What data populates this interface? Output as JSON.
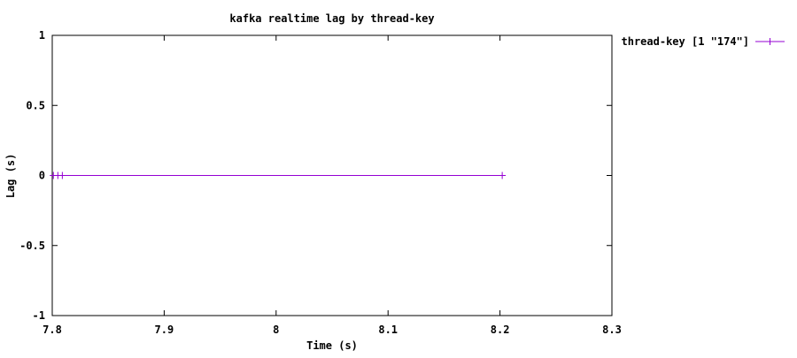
{
  "chart_data": {
    "type": "line",
    "title": "kafka realtime lag by thread-key",
    "xlabel": "Time (s)",
    "ylabel": "Lag (s)",
    "xlim": [
      7.8,
      8.3
    ],
    "ylim": [
      -1,
      1
    ],
    "x_ticks": [
      {
        "value": 7.8,
        "label": "7.8"
      },
      {
        "value": 7.9,
        "label": "7.9"
      },
      {
        "value": 8.0,
        "label": "8"
      },
      {
        "value": 8.1,
        "label": "8.1"
      },
      {
        "value": 8.2,
        "label": "8.2"
      },
      {
        "value": 8.3,
        "label": "8.3"
      }
    ],
    "y_ticks": [
      {
        "value": 1,
        "label": "1"
      },
      {
        "value": 0.5,
        "label": "0.5"
      },
      {
        "value": 0,
        "label": "0"
      },
      {
        "value": -0.5,
        "label": "-0.5"
      },
      {
        "value": -1,
        "label": "-1"
      }
    ],
    "grid": false,
    "legend_position": "outside-top-right",
    "series": [
      {
        "name": "thread-key [1 \"174\"]",
        "color": "#9400d3",
        "marker": "plus",
        "x": [
          7.801,
          7.805,
          7.809,
          8.202
        ],
        "y": [
          0,
          0,
          0,
          0
        ]
      }
    ]
  }
}
